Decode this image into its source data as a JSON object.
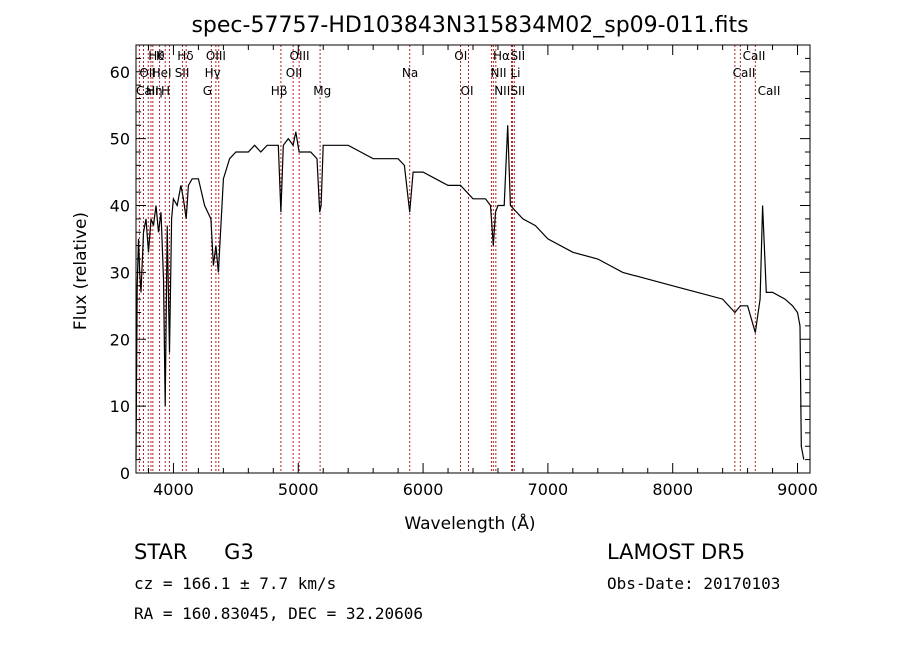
{
  "chart_data": {
    "type": "line",
    "title": "spec-57757-HD103843N315834M02_sp09-011.fits",
    "xlabel": "Wavelength (Å)",
    "ylabel": "Flux (relative)",
    "xlim": [
      3700,
      9100
    ],
    "ylim": [
      0,
      64
    ],
    "xticks": [
      4000,
      5000,
      6000,
      7000,
      8000,
      9000
    ],
    "yticks": [
      0,
      10,
      20,
      30,
      40,
      50,
      60
    ],
    "grid": false,
    "series": [
      {
        "x": [
          3700,
          3710,
          3720,
          3730,
          3740,
          3760,
          3780,
          3800,
          3820,
          3840,
          3860,
          3880,
          3900,
          3920,
          3934,
          3950,
          3968,
          3985,
          4000,
          4030,
          4060,
          4080,
          4102,
          4120,
          4150,
          4200,
          4250,
          4300,
          4320,
          4340,
          4360,
          4400,
          4450,
          4500,
          4550,
          4600,
          4650,
          4700,
          4750,
          4800,
          4840,
          4861,
          4880,
          4920,
          4959,
          4980,
          5007,
          5050,
          5100,
          5150,
          5172,
          5183,
          5200,
          5300,
          5400,
          5500,
          5600,
          5700,
          5800,
          5850,
          5893,
          5920,
          6000,
          6100,
          6200,
          6300,
          6400,
          6500,
          6540,
          6563,
          6580,
          6600,
          6650,
          6678,
          6700,
          6800,
          6900,
          7000,
          7200,
          7400,
          7600,
          7800,
          8000,
          8200,
          8400,
          8498,
          8542,
          8600,
          8662,
          8700,
          8720,
          8750,
          8800,
          8900,
          8960,
          9000,
          9020,
          9030,
          9050
        ],
        "y": [
          2,
          28,
          35,
          30,
          27,
          36,
          38,
          33,
          38,
          37,
          40,
          36,
          39,
          29,
          10,
          37,
          18,
          38,
          41,
          40,
          43,
          41,
          38,
          43,
          44,
          44,
          40,
          38,
          31,
          34,
          30,
          44,
          47,
          48,
          48,
          48,
          49,
          48,
          49,
          49,
          49,
          39,
          49,
          50,
          49,
          51,
          48,
          48,
          48,
          47,
          39,
          40,
          49,
          49,
          49,
          48,
          47,
          47,
          47,
          46,
          39,
          45,
          45,
          44,
          43,
          43,
          41,
          41,
          40,
          34,
          39,
          40,
          40,
          52,
          40,
          38,
          37,
          35,
          33,
          32,
          30,
          29,
          28,
          27,
          26,
          24,
          25,
          25,
          21,
          26,
          40,
          27,
          27,
          26,
          25,
          24,
          22,
          4,
          2
        ]
      }
    ],
    "line_labels": [
      {
        "wl": 3798,
        "text": "Hθ",
        "row": 1,
        "lines": [
          3798,
          3889
        ]
      },
      {
        "wl": 3860,
        "text": "K",
        "row": 1,
        "lines": [
          3934
        ]
      },
      {
        "wl": 3727,
        "text": "OII",
        "row": 2,
        "lines": [
          3727
        ]
      },
      {
        "wl": 3825,
        "text": "HeI",
        "row": 2,
        "lines": [
          3820
        ]
      },
      {
        "wl": 3700,
        "text": "CaII",
        "row": 3,
        "lines": [
          3760
        ]
      },
      {
        "wl": 3780,
        "text": "Hη",
        "row": 3,
        "lines": [
          3835
        ]
      },
      {
        "wl": 3900,
        "text": "H",
        "row": 3,
        "lines": [
          3968
        ]
      },
      {
        "wl": 4030,
        "text": "Hδ",
        "row": 1,
        "lines": [
          4102
        ]
      },
      {
        "wl": 4010,
        "text": "SII",
        "row": 2,
        "lines": [
          4072
        ]
      },
      {
        "wl": 4260,
        "text": "OIII",
        "row": 1,
        "lines": [
          4363
        ]
      },
      {
        "wl": 4250,
        "text": "Hγ",
        "row": 2,
        "lines": [
          4340
        ]
      },
      {
        "wl": 4235,
        "text": "G",
        "row": 3,
        "lines": [
          4304
        ]
      },
      {
        "wl": 4780,
        "text": "Hβ",
        "row": 3,
        "lines": [
          4861
        ]
      },
      {
        "wl": 4930,
        "text": "OIII",
        "row": 1,
        "lines": [
          4959,
          5007
        ]
      },
      {
        "wl": 4900,
        "text": "OII",
        "row": 2,
        "lines": [
          4959
        ]
      },
      {
        "wl": 5120,
        "text": "Mg",
        "row": 3,
        "lines": [
          5175
        ]
      },
      {
        "wl": 5830,
        "text": "Na",
        "row": 2,
        "lines": [
          5893
        ]
      },
      {
        "wl": 6250,
        "text": "OI",
        "row": 1,
        "lines": [
          6300
        ]
      },
      {
        "wl": 6300,
        "text": "OI",
        "row": 3,
        "lines": [
          6364
        ]
      },
      {
        "wl": 6560,
        "text": "Hα",
        "row": 1,
        "lines": [
          6563
        ]
      },
      {
        "wl": 6700,
        "text": "SII",
        "row": 1,
        "lines": [
          6716
        ]
      },
      {
        "wl": 6540,
        "text": "NII",
        "row": 2,
        "lines": [
          6548
        ]
      },
      {
        "wl": 6700,
        "text": "Li",
        "row": 2,
        "lines": [
          6708
        ]
      },
      {
        "wl": 6570,
        "text": "NII",
        "row": 3,
        "lines": [
          6583
        ]
      },
      {
        "wl": 6700,
        "text": "SII",
        "row": 3,
        "lines": [
          6731
        ]
      },
      {
        "wl": 8560,
        "text": "CaII",
        "row": 1,
        "lines": [
          8542
        ]
      },
      {
        "wl": 8480,
        "text": "CaII",
        "row": 2,
        "lines": [
          8498
        ]
      },
      {
        "wl": 8680,
        "text": "CaII",
        "row": 3,
        "lines": [
          8662
        ]
      }
    ],
    "line_color": "#b22222"
  },
  "info": {
    "class_label": "STAR",
    "subclass": "G3",
    "survey": "LAMOST DR5",
    "cz": "cz = 166.1 ± 7.7 km/s",
    "obs_date": "Obs-Date: 20170103",
    "coords": "RA = 160.83045, DEC =  32.20606"
  }
}
